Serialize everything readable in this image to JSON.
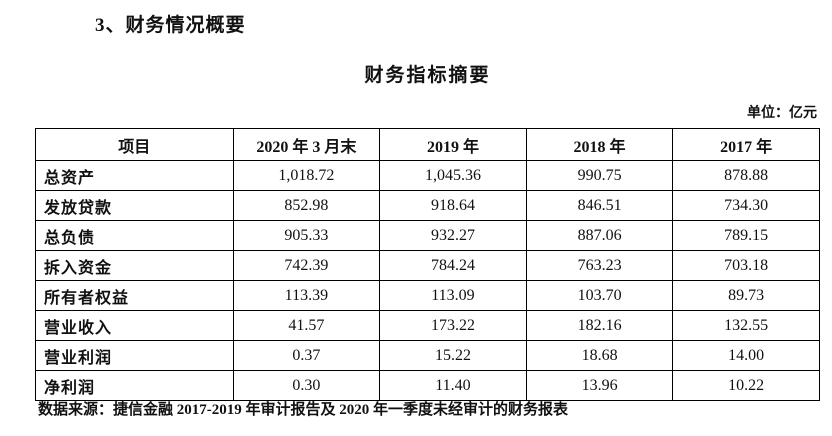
{
  "page": {
    "section_heading": "3、财务情况概要",
    "table_title": "财务指标摘要",
    "unit_label": "单位：亿元",
    "source_note": "数据来源：捷信金融 2017-2019 年审计报告及 2020 年一季度未经审计的财务报表"
  },
  "chart_data": {
    "type": "table",
    "title": "财务指标摘要",
    "unit": "亿元",
    "headers": [
      "项目",
      "2020 年 3 月末",
      "2019 年",
      "2018 年",
      "2017 年"
    ],
    "rows": [
      {
        "label": "总资产",
        "values": [
          "1,018.72",
          "1,045.36",
          "990.75",
          "878.88"
        ]
      },
      {
        "label": "发放贷款",
        "values": [
          "852.98",
          "918.64",
          "846.51",
          "734.30"
        ]
      },
      {
        "label": "总负债",
        "values": [
          "905.33",
          "932.27",
          "887.06",
          "789.15"
        ]
      },
      {
        "label": "拆入资金",
        "values": [
          "742.39",
          "784.24",
          "763.23",
          "703.18"
        ]
      },
      {
        "label": "所有者权益",
        "values": [
          "113.39",
          "113.09",
          "103.70",
          "89.73"
        ]
      },
      {
        "label": "营业收入",
        "values": [
          "41.57",
          "173.22",
          "182.16",
          "132.55"
        ]
      },
      {
        "label": "营业利润",
        "values": [
          "0.37",
          "15.22",
          "18.68",
          "14.00"
        ]
      },
      {
        "label": "净利润",
        "values": [
          "0.30",
          "11.40",
          "13.96",
          "10.22"
        ]
      }
    ]
  }
}
